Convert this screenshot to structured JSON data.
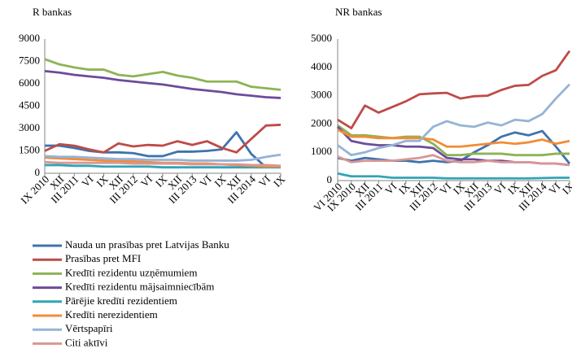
{
  "chart_data": [
    {
      "type": "line",
      "title": "R bankas",
      "categories": [
        "IX 2010",
        "XII",
        "III 2011",
        "VI",
        "IX",
        "XII",
        "III 2012",
        "VI",
        "IX",
        "XII",
        "III 2013",
        "VI",
        "IX",
        "XII",
        "III 2014",
        "VI",
        "IX"
      ],
      "ylim": [
        0,
        9000
      ],
      "yticks": [
        0,
        1500,
        3000,
        4500,
        6000,
        7500,
        9000
      ],
      "series": [
        {
          "name": "Nauda un prasības pret Latvijas Banku",
          "color": "#3f73ae",
          "values": [
            1850,
            1850,
            1700,
            1500,
            1400,
            1400,
            1350,
            1150,
            1150,
            1450,
            1450,
            1500,
            1600,
            2750,
            1300,
            400,
            500
          ]
        },
        {
          "name": "Prasības pret MFI",
          "color": "#be4b48",
          "values": [
            1500,
            1950,
            1850,
            1600,
            1400,
            2000,
            1800,
            1900,
            1850,
            2150,
            1900,
            2150,
            1700,
            1400,
            2300,
            3200,
            3250
          ]
        },
        {
          "name": "Kredīti rezidentu uzņēmumiem",
          "color": "#8db354",
          "values": [
            7650,
            7300,
            7100,
            6950,
            6950,
            6600,
            6500,
            6650,
            6800,
            6550,
            6400,
            6150,
            6150,
            6150,
            5800,
            5700,
            5600
          ]
        },
        {
          "name": "Kredīti rezidentu mājsaimniecībām",
          "color": "#6b4c9a",
          "values": [
            6850,
            6750,
            6600,
            6500,
            6400,
            6250,
            6150,
            6050,
            5950,
            5800,
            5650,
            5550,
            5450,
            5300,
            5200,
            5100,
            5050
          ]
        },
        {
          "name": "Pārējie kredīti rezidentiem",
          "color": "#31a4b6",
          "values": [
            550,
            550,
            500,
            500,
            450,
            450,
            450,
            450,
            400,
            400,
            400,
            400,
            400,
            400,
            400,
            400,
            400
          ]
        },
        {
          "name": "Kredīti nerezidentiem",
          "color": "#f28c36",
          "values": [
            1050,
            1000,
            950,
            900,
            850,
            800,
            800,
            750,
            700,
            700,
            650,
            650,
            600,
            550,
            500,
            450,
            450
          ]
        },
        {
          "name": "Vērtspapīri",
          "color": "#95b3d7",
          "values": [
            1150,
            1100,
            1100,
            1050,
            1000,
            950,
            950,
            900,
            900,
            900,
            850,
            850,
            850,
            850,
            900,
            1100,
            1250
          ]
        },
        {
          "name": "Citi aktīvi",
          "color": "#d99694",
          "values": [
            750,
            700,
            700,
            700,
            700,
            700,
            650,
            650,
            650,
            650,
            600,
            600,
            600,
            600,
            550,
            550,
            500
          ]
        }
      ]
    },
    {
      "type": "line",
      "title": "NR bankas",
      "categories": [
        "VI 2010",
        "IX 2010",
        "XII",
        "III 2011",
        "VI",
        "IX",
        "XII",
        "III 2012",
        "VI",
        "IX",
        "XII",
        "III 2013",
        "VI",
        "IX",
        "XII",
        "III 2014",
        "VI",
        "IX"
      ],
      "ylim": [
        0,
        5000
      ],
      "yticks": [
        0,
        1000,
        2000,
        3000,
        4000,
        5000
      ],
      "series": [
        {
          "values": [
            800,
            700,
            800,
            750,
            700,
            700,
            650,
            700,
            650,
            700,
            1000,
            1250,
            1550,
            1700,
            1600,
            1750,
            1200,
            600
          ]
        },
        {
          "values": [
            2150,
            1850,
            2650,
            2400,
            2600,
            2800,
            3050,
            3080,
            3100,
            2900,
            2980,
            3000,
            3200,
            3350,
            3380,
            3700,
            3900,
            4580
          ]
        },
        {
          "values": [
            1950,
            1600,
            1600,
            1550,
            1500,
            1550,
            1550,
            1300,
            900,
            900,
            950,
            950,
            950,
            900,
            900,
            900,
            950,
            950
          ]
        },
        {
          "values": [
            1900,
            1400,
            1300,
            1250,
            1250,
            1200,
            1200,
            1150,
            800,
            750,
            750,
            700,
            700,
            650,
            650,
            600,
            600,
            550
          ]
        },
        {
          "values": [
            250,
            150,
            150,
            150,
            100,
            100,
            100,
            100,
            80,
            80,
            80,
            80,
            80,
            80,
            80,
            90,
            100,
            100
          ]
        },
        {
          "values": [
            1800,
            1550,
            1550,
            1500,
            1500,
            1500,
            1500,
            1450,
            1200,
            1200,
            1250,
            1300,
            1350,
            1300,
            1350,
            1450,
            1300,
            1400
          ]
        },
        {
          "values": [
            1250,
            900,
            1000,
            1150,
            1250,
            1400,
            1400,
            1900,
            2100,
            1950,
            1900,
            2050,
            1950,
            2150,
            2100,
            2350,
            2900,
            3400
          ]
        },
        {
          "values": [
            850,
            650,
            700,
            700,
            700,
            750,
            800,
            900,
            700,
            650,
            650,
            700,
            650,
            650,
            650,
            600,
            600,
            550
          ]
        }
      ]
    }
  ]
}
